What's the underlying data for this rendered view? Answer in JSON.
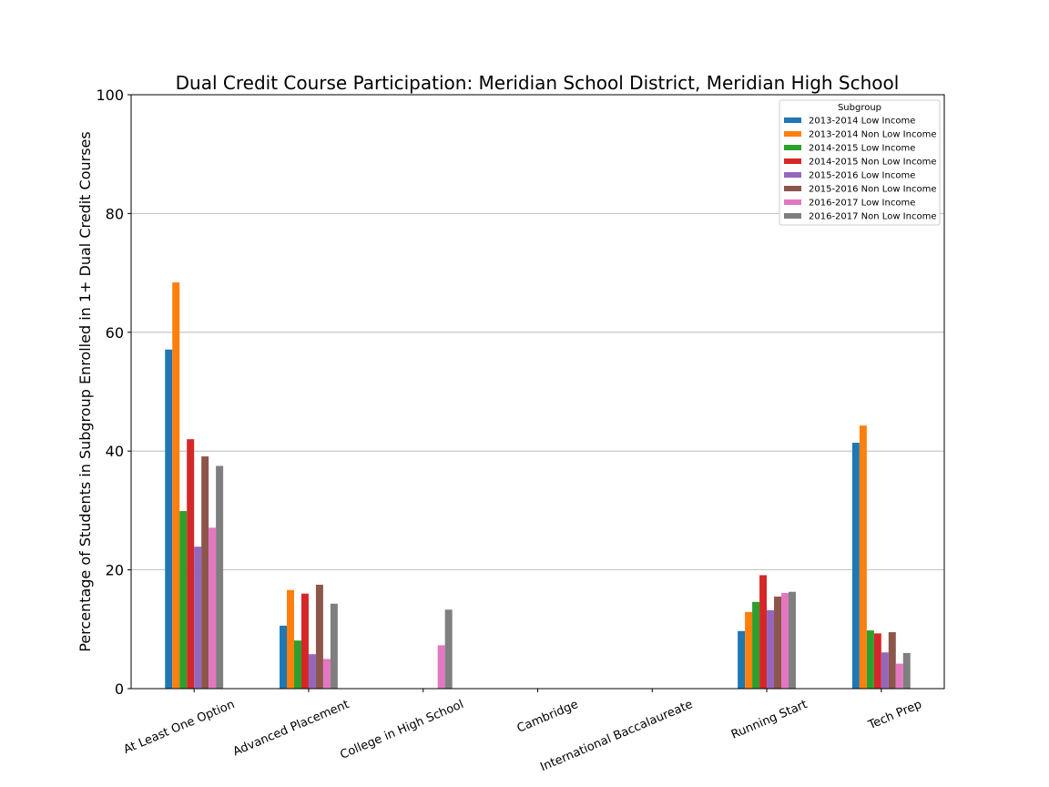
{
  "chart_data": {
    "type": "bar",
    "title": "Dual Credit Course Participation: Meridian School District, Meridian High School",
    "xlabel": "",
    "ylabel": "Percentage of Students in Subgroup Enrolled in 1+ Dual Credit Courses",
    "ylim": [
      0,
      100
    ],
    "yticks": [
      0,
      20,
      40,
      60,
      80,
      100
    ],
    "grid": "y",
    "legend": {
      "title": "Subgroup",
      "placement": "top-right"
    },
    "categories": [
      "At Least One Option",
      "Advanced Placement",
      "College in High School",
      "Cambridge",
      "International Baccalaureate",
      "Running Start",
      "Tech Prep"
    ],
    "series": [
      {
        "name": "2013-2014 Low Income",
        "color": "#1f77b4",
        "values": [
          57.1,
          10.6,
          0,
          0,
          0,
          9.7,
          41.4
        ]
      },
      {
        "name": "2013-2014 Non Low Income",
        "color": "#ff7f0e",
        "values": [
          68.4,
          16.6,
          0,
          0,
          0,
          12.9,
          44.3
        ]
      },
      {
        "name": "2014-2015 Low Income",
        "color": "#2ca02c",
        "values": [
          29.9,
          8.1,
          0,
          0,
          0,
          14.6,
          9.8
        ]
      },
      {
        "name": "2014-2015 Non Low Income",
        "color": "#d62728",
        "values": [
          42.0,
          16.0,
          0,
          0,
          0,
          19.1,
          9.3
        ]
      },
      {
        "name": "2015-2016 Low Income",
        "color": "#9467bd",
        "values": [
          23.9,
          5.8,
          0,
          0,
          0,
          13.2,
          6.1
        ]
      },
      {
        "name": "2015-2016 Non Low Income",
        "color": "#8c564b",
        "values": [
          39.1,
          17.5,
          0,
          0,
          0,
          15.5,
          9.5
        ]
      },
      {
        "name": "2016-2017 Low Income",
        "color": "#e377c2",
        "values": [
          27.1,
          5.0,
          7.3,
          0,
          0,
          16.1,
          4.2
        ]
      },
      {
        "name": "2016-2017 Non Low Income",
        "color": "#7f7f7f",
        "values": [
          37.5,
          14.3,
          13.3,
          0,
          0,
          16.3,
          6.0
        ]
      }
    ]
  }
}
